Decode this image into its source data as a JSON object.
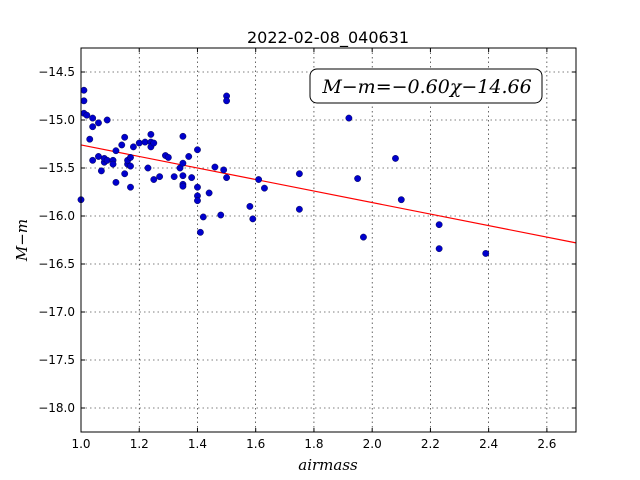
{
  "chart_data": {
    "type": "scatter",
    "title": "2022-02-08_040631",
    "xlabel": "airmass",
    "ylabel": "M−m",
    "xlim": [
      1.0,
      2.7
    ],
    "ylim": [
      -18.25,
      -14.25
    ],
    "y_inverted": true,
    "grid": true,
    "x_ticks": [
      1.0,
      1.2,
      1.4,
      1.6,
      1.8,
      2.0,
      2.2,
      2.4,
      2.6
    ],
    "x_tick_labels": [
      "1.0",
      "1.2",
      "1.4",
      "1.6",
      "1.8",
      "2.0",
      "2.2",
      "2.4",
      "2.6"
    ],
    "y_ticks": [
      -14.5,
      -15.0,
      -15.5,
      -16.0,
      -16.5,
      -17.0,
      -17.5,
      -18.0
    ],
    "y_tick_labels": [
      "−14.5",
      "−15.0",
      "−15.5",
      "−16.0",
      "−16.5",
      "−17.0",
      "−17.5",
      "−18.0"
    ],
    "annotation": "M−m=−0.60χ−14.66",
    "fit": {
      "slope": -0.6,
      "intercept": -14.66,
      "color": "#ff0000"
    },
    "point_color": "#0000cc",
    "points": [
      [
        1.0,
        -15.83
      ],
      [
        1.01,
        -14.93
      ],
      [
        1.01,
        -14.8
      ],
      [
        1.01,
        -14.69
      ],
      [
        1.02,
        -14.95
      ],
      [
        1.03,
        -15.2
      ],
      [
        1.04,
        -15.07
      ],
      [
        1.04,
        -14.98
      ],
      [
        1.04,
        -15.42
      ],
      [
        1.06,
        -15.03
      ],
      [
        1.06,
        -15.38
      ],
      [
        1.07,
        -15.53
      ],
      [
        1.08,
        -15.44
      ],
      [
        1.08,
        -15.4
      ],
      [
        1.09,
        -15.0
      ],
      [
        1.09,
        -15.42
      ],
      [
        1.11,
        -15.42
      ],
      [
        1.11,
        -15.46
      ],
      [
        1.12,
        -15.32
      ],
      [
        1.12,
        -15.65
      ],
      [
        1.14,
        -15.26
      ],
      [
        1.15,
        -15.18
      ],
      [
        1.15,
        -15.56
      ],
      [
        1.16,
        -15.46
      ],
      [
        1.16,
        -15.42
      ],
      [
        1.17,
        -15.48
      ],
      [
        1.17,
        -15.39
      ],
      [
        1.17,
        -15.7
      ],
      [
        1.18,
        -15.28
      ],
      [
        1.2,
        -15.24
      ],
      [
        1.22,
        -15.23
      ],
      [
        1.23,
        -15.5
      ],
      [
        1.24,
        -15.15
      ],
      [
        1.24,
        -15.23
      ],
      [
        1.24,
        -15.28
      ],
      [
        1.25,
        -15.24
      ],
      [
        1.25,
        -15.62
      ],
      [
        1.27,
        -15.59
      ],
      [
        1.29,
        -15.37
      ],
      [
        1.3,
        -15.39
      ],
      [
        1.32,
        -15.59
      ],
      [
        1.34,
        -15.5
      ],
      [
        1.35,
        -15.17
      ],
      [
        1.35,
        -15.45
      ],
      [
        1.35,
        -15.58
      ],
      [
        1.35,
        -15.67
      ],
      [
        1.35,
        -15.69
      ],
      [
        1.37,
        -15.38
      ],
      [
        1.38,
        -15.6
      ],
      [
        1.4,
        -15.31
      ],
      [
        1.4,
        -15.7
      ],
      [
        1.4,
        -15.79
      ],
      [
        1.4,
        -15.84
      ],
      [
        1.41,
        -16.17
      ],
      [
        1.42,
        -16.01
      ],
      [
        1.44,
        -15.76
      ],
      [
        1.46,
        -15.49
      ],
      [
        1.48,
        -15.99
      ],
      [
        1.49,
        -15.52
      ],
      [
        1.5,
        -15.6
      ],
      [
        1.5,
        -14.75
      ],
      [
        1.5,
        -14.8
      ],
      [
        1.58,
        -15.9
      ],
      [
        1.59,
        -16.03
      ],
      [
        1.61,
        -15.62
      ],
      [
        1.63,
        -15.71
      ],
      [
        1.75,
        -15.56
      ],
      [
        1.75,
        -15.93
      ],
      [
        1.92,
        -14.98
      ],
      [
        1.95,
        -15.61
      ],
      [
        1.97,
        -16.22
      ],
      [
        2.08,
        -15.4
      ],
      [
        2.1,
        -15.83
      ],
      [
        2.23,
        -16.09
      ],
      [
        2.23,
        -16.34
      ],
      [
        2.39,
        -16.39
      ]
    ]
  }
}
